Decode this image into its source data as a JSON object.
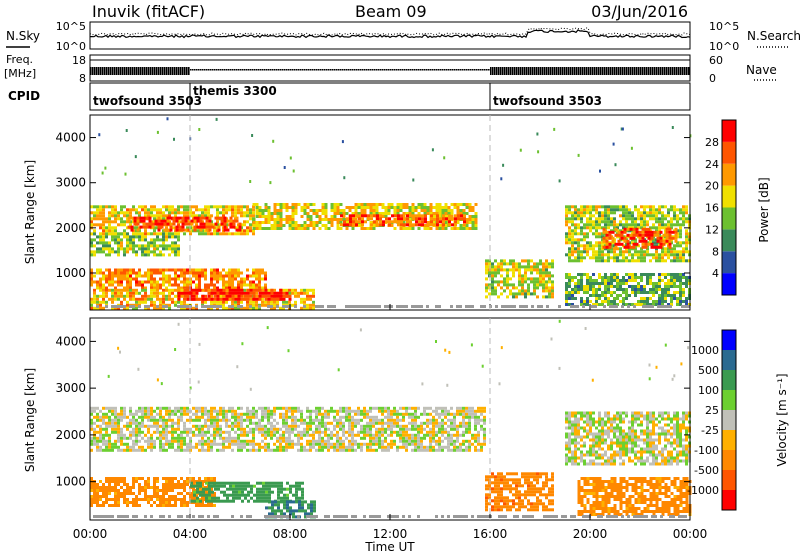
{
  "header": {
    "radar": "Inuvik (fitACF)",
    "beam": "Beam 09",
    "date": "03/Jun/2016"
  },
  "top_panel": {
    "left_label": "N.Sky",
    "right_label": "N.Search",
    "ytick_hi": "10^5",
    "ytick_lo": "10^0"
  },
  "freq_panel": {
    "left_label_1": "Freq.",
    "left_label_2": "[MHz]",
    "right_label": "Nave",
    "ytick_left_hi": "18",
    "ytick_left_lo": "8",
    "ytick_right_hi": "60",
    "ytick_right_lo": "0"
  },
  "cpid": {
    "label": "CPID",
    "segments": [
      {
        "name": "twofsound 3503",
        "start_h": 0,
        "end_h": 4
      },
      {
        "name": "themis 3300",
        "start_h": 4,
        "end_h": 16
      },
      {
        "name": "twofsound 3503",
        "start_h": 16,
        "end_h": 24
      }
    ]
  },
  "colors": {
    "power": [
      "#0000ff",
      "#2a50a0",
      "#3a8a5a",
      "#6cc030",
      "#f0e000",
      "#ff9900",
      "#ff5500",
      "#ff0000"
    ],
    "velocity": [
      "#ff0000",
      "#ff5500",
      "#ff8800",
      "#ffb000",
      "#c0c0b8",
      "#6cd030",
      "#3a9a50",
      "#2a6a90",
      "#0000ff"
    ]
  },
  "chart_data": [
    {
      "type": "heatmap",
      "panel": "power",
      "ylabel": "Slant Range [km]",
      "xlabel": "",
      "ylim": [
        180,
        4500
      ],
      "xlim": [
        0,
        24
      ],
      "xticks": [
        "00:00",
        "04:00",
        "08:00",
        "12:00",
        "16:00",
        "20:00",
        "00:00"
      ],
      "yticks": [
        1000,
        2000,
        3000,
        4000
      ],
      "colorbar": {
        "label": "Power [dB]",
        "ticks": [
          "4",
          "8",
          "12",
          "16",
          "20",
          "24",
          "28"
        ],
        "range": [
          0,
          30
        ]
      },
      "echo_regions": [
        {
          "t0": 0.0,
          "t1": 6.5,
          "r0": 1900,
          "r1": 2500,
          "level": 18
        },
        {
          "t0": 1.5,
          "t1": 6.0,
          "r0": 1950,
          "r1": 2250,
          "level": 26
        },
        {
          "t0": 6.5,
          "t1": 15.5,
          "r0": 2000,
          "r1": 2550,
          "level": 17
        },
        {
          "t0": 10.0,
          "t1": 15.0,
          "r0": 2050,
          "r1": 2300,
          "level": 24
        },
        {
          "t0": 0.0,
          "t1": 3.5,
          "r0": 1400,
          "r1": 1900,
          "level": 14
        },
        {
          "t0": 0.0,
          "t1": 7.0,
          "r0": 650,
          "r1": 1100,
          "level": 22
        },
        {
          "t0": 0.0,
          "t1": 9.0,
          "r0": 250,
          "r1": 650,
          "level": 19
        },
        {
          "t0": 3.5,
          "t1": 8.0,
          "r0": 400,
          "r1": 650,
          "level": 27
        },
        {
          "t0": 15.8,
          "t1": 18.5,
          "r0": 500,
          "r1": 1300,
          "level": 16
        },
        {
          "t0": 19.0,
          "t1": 24.0,
          "r0": 1300,
          "r1": 2500,
          "level": 15
        },
        {
          "t0": 20.5,
          "t1": 23.5,
          "r0": 1600,
          "r1": 2000,
          "level": 25
        },
        {
          "t0": 19.0,
          "t1": 24.0,
          "r0": 300,
          "r1": 1000,
          "level": 12
        }
      ]
    },
    {
      "type": "heatmap",
      "panel": "velocity",
      "ylabel": "Slant Range [km]",
      "xlabel": "Time UT",
      "ylim": [
        180,
        4500
      ],
      "xlim": [
        0,
        24
      ],
      "xticks": [
        "00:00",
        "04:00",
        "08:00",
        "12:00",
        "16:00",
        "20:00",
        "00:00"
      ],
      "yticks": [
        1000,
        2000,
        3000,
        4000
      ],
      "colorbar": {
        "label": "Velocity [m s⁻¹]",
        "ticks": [
          "1000",
          "500",
          "100",
          "25",
          "-25",
          "-100",
          "-500",
          "-1000"
        ]
      },
      "echo_regions": [
        {
          "t0": 0.0,
          "t1": 15.8,
          "r0": 1700,
          "r1": 2600,
          "v": 0
        },
        {
          "t0": 19.0,
          "t1": 24.0,
          "r0": 1400,
          "r1": 2500,
          "v": 0
        },
        {
          "t0": 0.0,
          "t1": 5.0,
          "r0": 500,
          "r1": 1100,
          "v": -150
        },
        {
          "t0": 4.0,
          "t1": 8.5,
          "r0": 600,
          "r1": 1000,
          "v": 150
        },
        {
          "t0": 7.0,
          "t1": 9.0,
          "r0": 250,
          "r1": 600,
          "v": 300
        },
        {
          "t0": 15.8,
          "t1": 18.5,
          "r0": 400,
          "r1": 1200,
          "v": -200
        },
        {
          "t0": 19.5,
          "t1": 24.0,
          "r0": 300,
          "r1": 1100,
          "v": -150
        }
      ]
    }
  ]
}
